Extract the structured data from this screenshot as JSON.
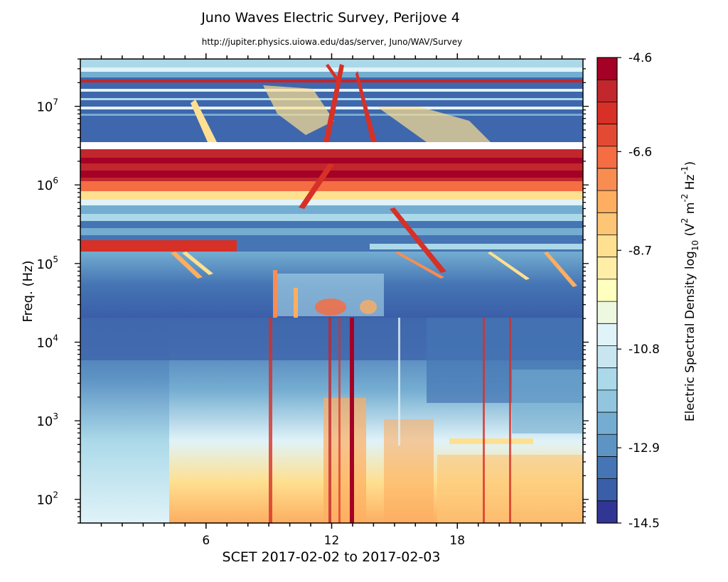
{
  "chart_data": {
    "type": "heatmap",
    "title": "Juno Waves Electric Survey, Perijove 4",
    "subtitle": "http://jupiter.physics.uiowa.edu/das/server, Juno/WAV/Survey",
    "xlabel": "SCET 2017-02-02 to 2017-02-03",
    "ylabel": "Freq. (Hz)",
    "x_unit": "hours",
    "xlim": [
      0,
      24
    ],
    "x_ticks": [
      {
        "value": 6,
        "label": "6"
      },
      {
        "value": 12,
        "label": "12"
      },
      {
        "value": 18,
        "label": "18"
      }
    ],
    "y_scale": "log",
    "ylim": [
      50,
      40000000
    ],
    "y_ticks": [
      {
        "value": 100,
        "base": "10",
        "exp": "2"
      },
      {
        "value": 1000,
        "base": "10",
        "exp": "3"
      },
      {
        "value": 10000,
        "base": "10",
        "exp": "4"
      },
      {
        "value": 100000,
        "base": "10",
        "exp": "5"
      },
      {
        "value": 1000000,
        "base": "10",
        "exp": "6"
      },
      {
        "value": 10000000,
        "base": "10",
        "exp": "7"
      }
    ],
    "colorbar": {
      "label_parts": {
        "main": "Electric Spectral Density log",
        "sub": "10",
        "open": " (V",
        "sup1": "2",
        "mid1": " m",
        "sup2": "-2",
        "mid2": " Hz",
        "sup3": "-1",
        "close": ")"
      },
      "range": [
        -14.5,
        -4.6
      ],
      "tick_labels": [
        "-4.6",
        "-6.6",
        "-8.7",
        "-10.8",
        "-12.9",
        "-14.5"
      ],
      "colors": [
        "#a50026",
        "#c1272d",
        "#d73027",
        "#e34a33",
        "#f46d43",
        "#f88d52",
        "#fdae61",
        "#fdc576",
        "#fee090",
        "#ffeea8",
        "#ffffbf",
        "#eef7e0",
        "#e0f3f8",
        "#c9e6f0",
        "#abd9e9",
        "#92c5de",
        "#74add1",
        "#5e94c4",
        "#4575b4",
        "#3b5ea8",
        "#313695"
      ]
    },
    "grid": false
  }
}
